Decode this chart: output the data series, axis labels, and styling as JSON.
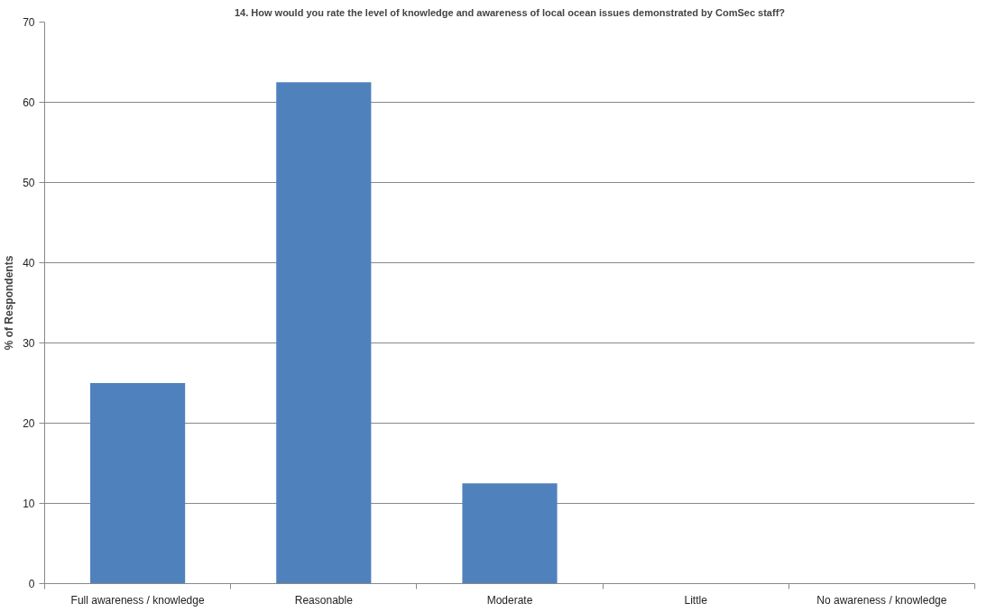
{
  "chart_data": {
    "type": "bar",
    "title": "14. How would you rate the level of knowledge and awareness of local ocean issues demonstrated by ComSec staff?",
    "ylabel": "% of Respondents",
    "categories": [
      "Full awareness / knowledge",
      "Reasonable",
      "Moderate",
      "Little",
      "No awareness / knowledge"
    ],
    "values": [
      25,
      62.5,
      12.5,
      0,
      0
    ],
    "color": "#4f81bd",
    "ylim": [
      0,
      70
    ],
    "yticks": [
      0,
      10,
      20,
      30,
      40,
      50,
      60,
      70
    ],
    "grid": "y"
  }
}
